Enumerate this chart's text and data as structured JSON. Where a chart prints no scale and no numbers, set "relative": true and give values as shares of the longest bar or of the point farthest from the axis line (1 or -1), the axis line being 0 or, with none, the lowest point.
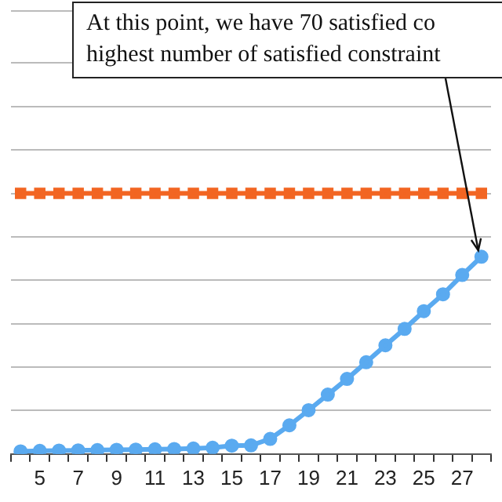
{
  "chart_data": {
    "type": "line",
    "relative": true,
    "categories": [
      null,
      "5",
      null,
      "7",
      null,
      "9",
      null,
      "11",
      null,
      "13",
      null,
      "15",
      null,
      "17",
      null,
      "19",
      null,
      "21",
      null,
      "23",
      null,
      "25",
      null,
      "27",
      null
    ],
    "series": [
      {
        "color": "#f26522",
        "marker": "square",
        "values": [
          1,
          1,
          1,
          1,
          1,
          1,
          1,
          1,
          1,
          1,
          1,
          1,
          1,
          1,
          1,
          1,
          1,
          1,
          1,
          1,
          1,
          1,
          1,
          1,
          1
        ]
      },
      {
        "color": "#5aaaf0",
        "marker": "circle",
        "values": [
          0.01,
          0.012,
          0.013,
          0.014,
          0.015,
          0.016,
          0.017,
          0.018,
          0.019,
          0.021,
          0.024,
          0.032,
          0.033,
          0.058,
          0.11,
          0.168,
          0.228,
          0.288,
          0.352,
          0.417,
          0.48,
          0.548,
          0.613,
          0.687,
          0.757
        ]
      }
    ],
    "grid": "y",
    "legend": false,
    "tick_labels": "x",
    "annotations": [
      "At this point, we have 70 satisfied co\nhighest number of satisfied constraint"
    ]
  }
}
